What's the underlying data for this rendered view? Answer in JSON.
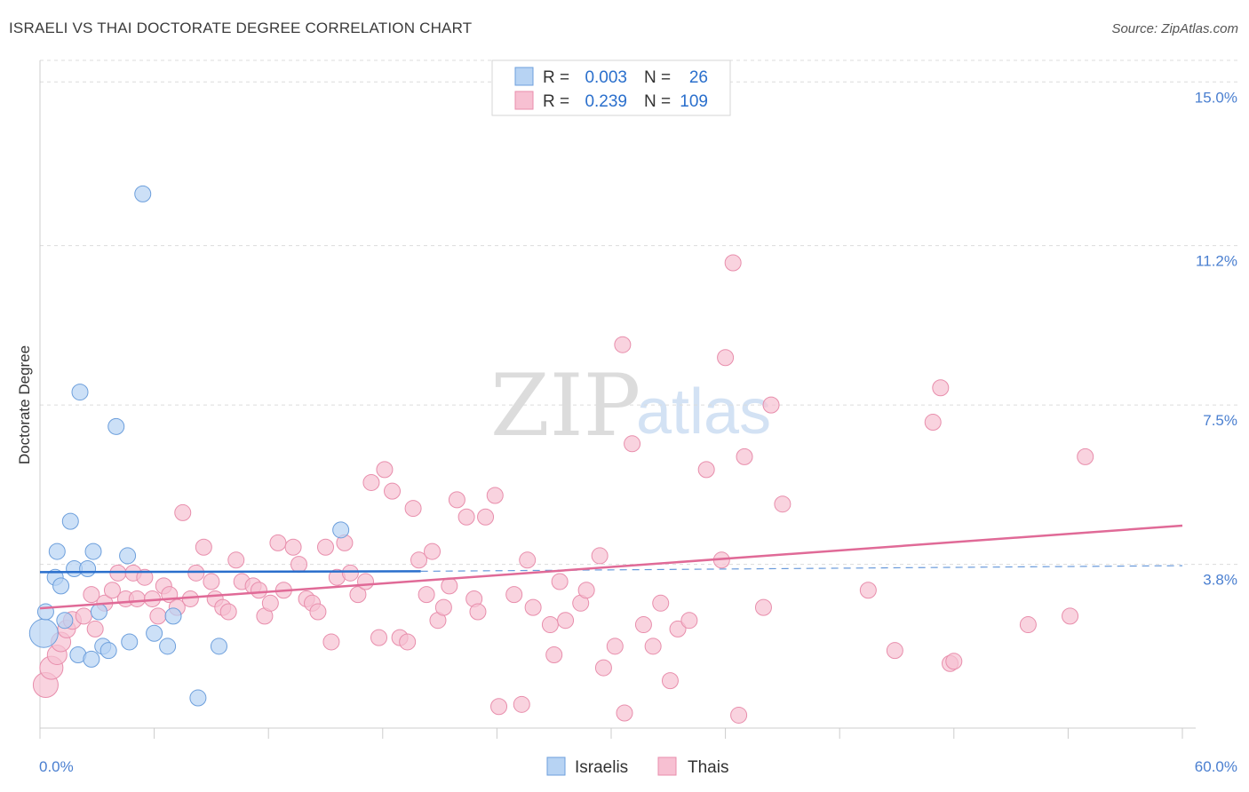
{
  "chart_data": {
    "type": "scatter",
    "title": "ISRAELI VS THAI DOCTORATE DEGREE CORRELATION CHART",
    "source": "Source: ZipAtlas.com",
    "xlabel": "",
    "ylabel": "Doctorate Degree",
    "xlim": [
      0,
      60
    ],
    "ylim": [
      0,
      15.5
    ],
    "x_tick_labels": [
      "0.0%",
      "60.0%"
    ],
    "y_ticks": [
      3.8,
      7.5,
      11.2,
      15.0
    ],
    "y_tick_labels": [
      "3.8%",
      "7.5%",
      "11.2%",
      "15.0%"
    ],
    "grid": true,
    "watermark": {
      "zip": "ZIP",
      "atlas": "atlas"
    },
    "stats": [
      {
        "r_label": "R =",
        "r_value": "0.003",
        "n_label": "N =",
        "n_value": "26"
      },
      {
        "r_label": "R =",
        "r_value": "0.239",
        "n_label": "N =",
        "n_value": "109"
      }
    ],
    "colors": {
      "israelis_fill": "#b7d3f3",
      "israelis_stroke": "#6d9fdc",
      "israelis_line": "#2a6fcc",
      "thais_fill": "#f7c0d2",
      "thais_stroke": "#e88eac",
      "thais_line": "#e06a97",
      "grid": "#dcdcdc",
      "axis": "#cccccc"
    },
    "series": [
      {
        "name": "Israelis",
        "trend": {
          "solid": [
            [
              0,
              3.62
            ],
            [
              20,
              3.64
            ]
          ],
          "dashed": [
            [
              20,
              3.64
            ],
            [
              60,
              3.77
            ]
          ]
        },
        "points": [
          [
            0.2,
            2.2,
            16
          ],
          [
            0.3,
            2.7,
            9
          ],
          [
            0.8,
            3.5,
            9
          ],
          [
            0.9,
            4.1,
            9
          ],
          [
            1.1,
            3.3,
            9
          ],
          [
            1.3,
            2.5,
            9
          ],
          [
            1.6,
            4.8,
            9
          ],
          [
            1.8,
            3.7,
            9
          ],
          [
            2.0,
            1.7,
            9
          ],
          [
            2.1,
            7.8,
            9
          ],
          [
            2.5,
            3.7,
            9
          ],
          [
            2.7,
            1.6,
            9
          ],
          [
            2.8,
            4.1,
            9
          ],
          [
            3.1,
            2.7,
            9
          ],
          [
            3.3,
            1.9,
            9
          ],
          [
            3.6,
            1.8,
            9
          ],
          [
            4.0,
            7.0,
            9
          ],
          [
            4.6,
            4.0,
            9
          ],
          [
            4.7,
            2.0,
            9
          ],
          [
            5.4,
            12.4,
            9
          ],
          [
            6.0,
            2.2,
            9
          ],
          [
            6.7,
            1.9,
            9
          ],
          [
            7.0,
            2.6,
            9
          ],
          [
            8.3,
            0.7,
            9
          ],
          [
            9.4,
            1.9,
            9
          ],
          [
            15.8,
            4.6,
            9
          ]
        ]
      },
      {
        "name": "Thais",
        "trend": {
          "solid": [
            [
              0,
              2.78
            ],
            [
              60,
              4.7
            ]
          ]
        },
        "points": [
          [
            0.3,
            1.0,
            14
          ],
          [
            0.6,
            1.4,
            13
          ],
          [
            0.9,
            1.7,
            11
          ],
          [
            1.1,
            2.0,
            11
          ],
          [
            1.4,
            2.3,
            10
          ],
          [
            1.7,
            2.5,
            10
          ],
          [
            2.3,
            2.6,
            9
          ],
          [
            2.7,
            3.1,
            9
          ],
          [
            2.9,
            2.3,
            9
          ],
          [
            3.4,
            2.9,
            9
          ],
          [
            3.8,
            3.2,
            9
          ],
          [
            4.1,
            3.6,
            9
          ],
          [
            4.5,
            3.0,
            9
          ],
          [
            4.9,
            3.6,
            9
          ],
          [
            5.1,
            3.0,
            9
          ],
          [
            5.5,
            3.5,
            9
          ],
          [
            5.9,
            3.0,
            9
          ],
          [
            6.2,
            2.6,
            9
          ],
          [
            6.5,
            3.3,
            9
          ],
          [
            6.8,
            3.1,
            9
          ],
          [
            7.2,
            2.8,
            9
          ],
          [
            7.5,
            5.0,
            9
          ],
          [
            7.9,
            3.0,
            9
          ],
          [
            8.2,
            3.6,
            9
          ],
          [
            8.6,
            4.2,
            9
          ],
          [
            9.0,
            3.4,
            9
          ],
          [
            9.2,
            3.0,
            9
          ],
          [
            9.6,
            2.8,
            9
          ],
          [
            9.9,
            2.7,
            9
          ],
          [
            10.3,
            3.9,
            9
          ],
          [
            10.6,
            3.4,
            9
          ],
          [
            11.2,
            3.3,
            9
          ],
          [
            11.5,
            3.2,
            9
          ],
          [
            11.8,
            2.6,
            9
          ],
          [
            12.1,
            2.9,
            9
          ],
          [
            12.5,
            4.3,
            9
          ],
          [
            12.8,
            3.2,
            9
          ],
          [
            13.3,
            4.2,
            9
          ],
          [
            13.6,
            3.8,
            9
          ],
          [
            14.0,
            3.0,
            9
          ],
          [
            14.3,
            2.9,
            9
          ],
          [
            14.6,
            2.7,
            9
          ],
          [
            15.0,
            4.2,
            9
          ],
          [
            15.3,
            2.0,
            9
          ],
          [
            15.6,
            3.5,
            9
          ],
          [
            16.0,
            4.3,
            9
          ],
          [
            16.3,
            3.6,
            9
          ],
          [
            16.7,
            3.1,
            9
          ],
          [
            17.1,
            3.4,
            9
          ],
          [
            17.4,
            5.7,
            9
          ],
          [
            17.8,
            2.1,
            9
          ],
          [
            18.1,
            6.0,
            9
          ],
          [
            18.5,
            5.5,
            9
          ],
          [
            18.9,
            2.1,
            9
          ],
          [
            19.3,
            2.0,
            9
          ],
          [
            19.6,
            5.1,
            9
          ],
          [
            19.9,
            3.9,
            9
          ],
          [
            20.3,
            3.1,
            9
          ],
          [
            20.6,
            4.1,
            9
          ],
          [
            20.9,
            2.5,
            9
          ],
          [
            21.2,
            2.8,
            9
          ],
          [
            21.5,
            3.3,
            9
          ],
          [
            21.9,
            5.3,
            9
          ],
          [
            22.4,
            4.9,
            9
          ],
          [
            22.8,
            3.0,
            9
          ],
          [
            23.0,
            2.7,
            9
          ],
          [
            23.4,
            4.9,
            9
          ],
          [
            23.9,
            5.4,
            9
          ],
          [
            24.1,
            0.5,
            9
          ],
          [
            24.9,
            3.1,
            9
          ],
          [
            25.3,
            0.55,
            9
          ],
          [
            25.6,
            3.9,
            9
          ],
          [
            25.9,
            2.8,
            9
          ],
          [
            26.8,
            2.4,
            9
          ],
          [
            27.0,
            1.7,
            9
          ],
          [
            27.3,
            3.4,
            9
          ],
          [
            27.6,
            2.5,
            9
          ],
          [
            28.4,
            2.9,
            9
          ],
          [
            28.7,
            3.2,
            9
          ],
          [
            29.4,
            4.0,
            9
          ],
          [
            29.6,
            1.4,
            9
          ],
          [
            30.2,
            1.9,
            9
          ],
          [
            30.6,
            8.9,
            9
          ],
          [
            30.7,
            0.35,
            9
          ],
          [
            31.1,
            6.6,
            9
          ],
          [
            31.7,
            2.4,
            9
          ],
          [
            32.2,
            1.9,
            9
          ],
          [
            32.6,
            2.9,
            9
          ],
          [
            33.1,
            1.1,
            9
          ],
          [
            33.5,
            2.3,
            9
          ],
          [
            34.1,
            2.5,
            9
          ],
          [
            35.0,
            6.0,
            9
          ],
          [
            35.8,
            3.9,
            9
          ],
          [
            36.0,
            8.6,
            9
          ],
          [
            36.4,
            10.8,
            9
          ],
          [
            36.7,
            0.3,
            9
          ],
          [
            37.0,
            6.3,
            9
          ],
          [
            38.0,
            2.8,
            9
          ],
          [
            38.4,
            7.5,
            9
          ],
          [
            39.0,
            5.2,
            9
          ],
          [
            43.5,
            3.2,
            9
          ],
          [
            44.9,
            1.8,
            9
          ],
          [
            46.9,
            7.1,
            9
          ],
          [
            47.3,
            7.9,
            9
          ],
          [
            47.8,
            1.5,
            9
          ],
          [
            48.0,
            1.55,
            9
          ],
          [
            51.9,
            2.4,
            9
          ],
          [
            54.1,
            2.6,
            9
          ],
          [
            54.9,
            6.3,
            9
          ]
        ]
      }
    ],
    "legend": {
      "position": "bottom-center",
      "items": [
        "Israelis",
        "Thais"
      ]
    }
  }
}
